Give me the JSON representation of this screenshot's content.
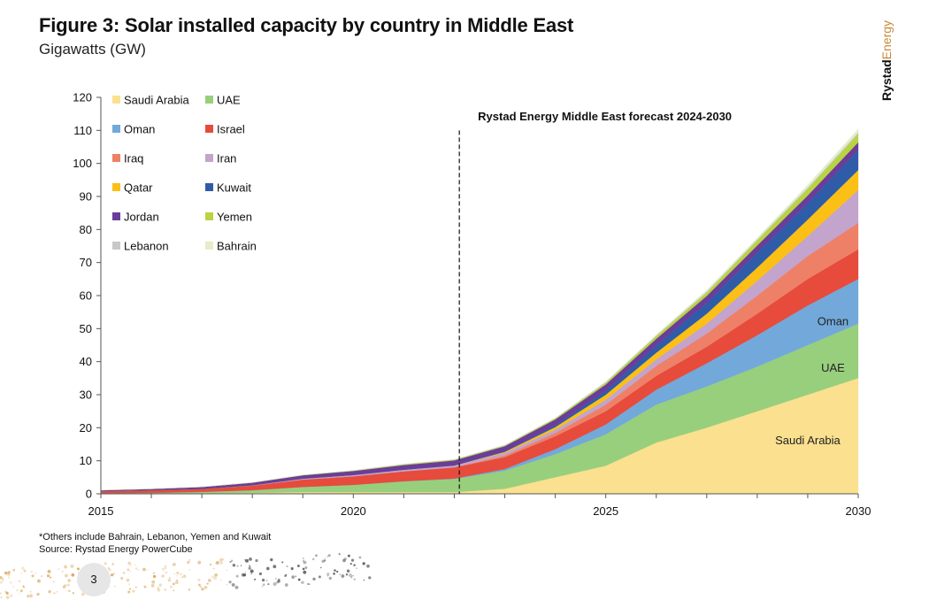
{
  "title": "Figure 3: Solar installed capacity by country in Middle East",
  "subtitle": "Gigawatts (GW)",
  "brand": {
    "text_bold": "Rystad",
    "text_light": "Energy",
    "color_bold": "#111111",
    "color_light": "#c8893a"
  },
  "footnote": {
    "line1": "*Others include Bahrain, Lebanon, Yemen and Kuwait",
    "line2": "Source: Rystad Energy PowerCube"
  },
  "page_number": "3",
  "chart_data": {
    "type": "area",
    "stacked": true,
    "x": [
      2015,
      2016,
      2017,
      2018,
      2019,
      2020,
      2021,
      2022,
      2023,
      2024,
      2025,
      2026,
      2027,
      2028,
      2029,
      2030
    ],
    "xlim": [
      2015,
      2030
    ],
    "x_ticks": [
      "2015",
      "2020",
      "2025",
      "2030"
    ],
    "ylim": [
      0,
      120
    ],
    "y_ticks": [
      "0",
      "10",
      "20",
      "30",
      "40",
      "50",
      "60",
      "70",
      "80",
      "90",
      "100",
      "110",
      "120"
    ],
    "grid": false,
    "legend_position": "top-left",
    "series": [
      {
        "name": "Saudi Arabia",
        "color": "#fbe08f",
        "values": [
          0.1,
          0.1,
          0.2,
          0.3,
          0.5,
          0.5,
          0.5,
          0.5,
          1.5,
          5.0,
          8.5,
          15.5,
          20.0,
          25.0,
          30.0,
          35.0
        ]
      },
      {
        "name": "UAE",
        "color": "#98cf7d",
        "values": [
          0.1,
          0.2,
          0.4,
          0.8,
          1.6,
          2.2,
          3.3,
          4.0,
          5.5,
          7.0,
          9.5,
          11.5,
          12.5,
          13.5,
          15.0,
          16.5
        ]
      },
      {
        "name": "Oman",
        "color": "#72a9da",
        "values": [
          0,
          0,
          0,
          0,
          0,
          0,
          0,
          0.1,
          0.5,
          1.5,
          3.0,
          4.5,
          7.0,
          9.5,
          12.0,
          13.5
        ]
      },
      {
        "name": "Israel",
        "color": "#e64b3b",
        "values": [
          0.6,
          0.8,
          0.9,
          1.4,
          2.2,
          2.6,
          3.0,
          3.4,
          3.6,
          3.9,
          4.0,
          4.2,
          5.0,
          6.5,
          8.0,
          9.0
        ]
      },
      {
        "name": "Iraq",
        "color": "#ee8067",
        "values": [
          0,
          0,
          0,
          0,
          0,
          0,
          0,
          0,
          0.5,
          1.0,
          2.0,
          3.0,
          4.0,
          5.5,
          7.0,
          8.0
        ]
      },
      {
        "name": "Iran",
        "color": "#c2a4cc",
        "values": [
          0,
          0,
          0,
          0.1,
          0.3,
          0.4,
          0.5,
          0.6,
          0.8,
          1.0,
          1.5,
          2.0,
          3.0,
          4.5,
          6.0,
          10.0
        ]
      },
      {
        "name": "Qatar",
        "color": "#fbbf15",
        "values": [
          0,
          0,
          0,
          0,
          0,
          0,
          0,
          0,
          0.3,
          0.8,
          1.5,
          2.0,
          3.0,
          4.0,
          5.0,
          6.0
        ]
      },
      {
        "name": "Kuwait",
        "color": "#2e5ca8",
        "values": [
          0,
          0,
          0,
          0,
          0,
          0,
          0,
          0,
          0.1,
          0.5,
          1.2,
          2.2,
          3.3,
          4.5,
          5.0,
          6.0
        ]
      },
      {
        "name": "Jordan",
        "color": "#6b3d9a",
        "values": [
          0.3,
          0.4,
          0.6,
          0.8,
          1.0,
          1.2,
          1.4,
          1.5,
          1.6,
          1.8,
          1.9,
          2.0,
          2.1,
          2.2,
          2.3,
          2.4
        ]
      },
      {
        "name": "Yemen",
        "color": "#b8d43f",
        "values": [
          0,
          0,
          0,
          0,
          0.1,
          0.1,
          0.2,
          0.2,
          0.2,
          0.3,
          0.5,
          0.8,
          1.0,
          1.5,
          2.0,
          2.5
        ]
      },
      {
        "name": "Lebanon",
        "color": "#c8c8c8",
        "values": [
          0,
          0,
          0,
          0,
          0,
          0.1,
          0.1,
          0.1,
          0.1,
          0.1,
          0.2,
          0.2,
          0.3,
          0.3,
          0.4,
          0.5
        ]
      },
      {
        "name": "Bahrain",
        "color": "#e4eeca",
        "values": [
          0,
          0,
          0,
          0,
          0,
          0,
          0,
          0,
          0.1,
          0.1,
          0.2,
          0.3,
          0.5,
          0.5,
          0.8,
          1.0
        ]
      }
    ],
    "forecast_line": {
      "x": 2022.1,
      "y_top": 110,
      "label": "Rystad Energy Middle East forecast 2024-2030"
    },
    "annotations": [
      {
        "text": "Oman",
        "x": 2029.5,
        "y": 51
      },
      {
        "text": "UAE",
        "x": 2029.5,
        "y": 37
      },
      {
        "text": "Saudi Arabia",
        "x": 2029.0,
        "y": 15
      }
    ]
  }
}
